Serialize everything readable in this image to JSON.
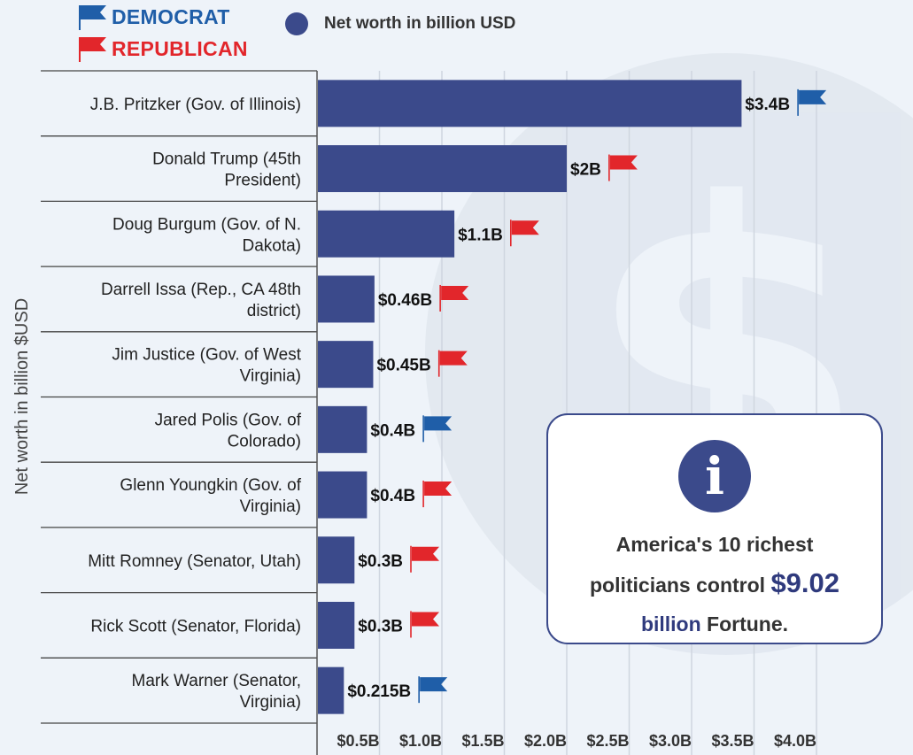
{
  "legend": {
    "democrat": "DEMOCRAT",
    "republican": "REPUBLICAN",
    "series": "Net worth in billion USD"
  },
  "colors": {
    "bar": "#3b4a8b",
    "democrat": "#1f5ea8",
    "republican": "#e2262b",
    "grid": "#cfd6e0",
    "background": "#eef3f9"
  },
  "info_box": {
    "icon": "info-icon",
    "icon_glyph": "i",
    "line1": "America's 10 richest",
    "line2_prefix": "politicians control",
    "highlight_value": "$9.02",
    "highlight_unit": "billion",
    "suffix": "Fortune."
  },
  "chart_data": {
    "type": "bar",
    "orientation": "horizontal",
    "ylabel": "Net worth in billion $USD",
    "xlim": [
      0,
      4.4
    ],
    "xticks": [
      0.5,
      1.0,
      1.5,
      2.0,
      2.5,
      3.0,
      3.5,
      4.0
    ],
    "xtick_labels": [
      "$0.5B",
      "$1.0B",
      "$1.5B",
      "$2.0B",
      "$2.5B",
      "$3.0B",
      "$3.5B",
      "$4.0B"
    ],
    "grid": true,
    "background_icon": "dollar-sign-icon",
    "categories": [
      [
        "J.B. Pritzker (Gov. of Illinois)"
      ],
      [
        "Donald Trump (45th",
        "President)"
      ],
      [
        "Doug Burgum (Gov. of N.",
        "Dakota)"
      ],
      [
        "Darrell Issa (Rep., CA 48th",
        "district)"
      ],
      [
        "Jim Justice (Gov. of West",
        "Virginia)"
      ],
      [
        "Jared Polis (Gov. of",
        "Colorado)"
      ],
      [
        "Glenn Youngkin (Gov. of",
        "Virginia)"
      ],
      [
        "Mitt Romney (Senator, Utah)"
      ],
      [
        "Rick Scott (Senator, Florida)"
      ],
      [
        "Mark Warner (Senator,",
        "Virginia)"
      ]
    ],
    "values": [
      3.4,
      2.0,
      1.1,
      0.46,
      0.45,
      0.4,
      0.4,
      0.3,
      0.3,
      0.215
    ],
    "value_labels": [
      "$3.4B",
      "$2B",
      "$1.1B",
      "$0.46B",
      "$0.45B",
      "$0.4B",
      "$0.4B",
      "$0.3B",
      "$0.3B",
      "$0.215B"
    ],
    "party": [
      "democrat",
      "republican",
      "republican",
      "republican",
      "republican",
      "democrat",
      "republican",
      "republican",
      "republican",
      "democrat"
    ]
  }
}
